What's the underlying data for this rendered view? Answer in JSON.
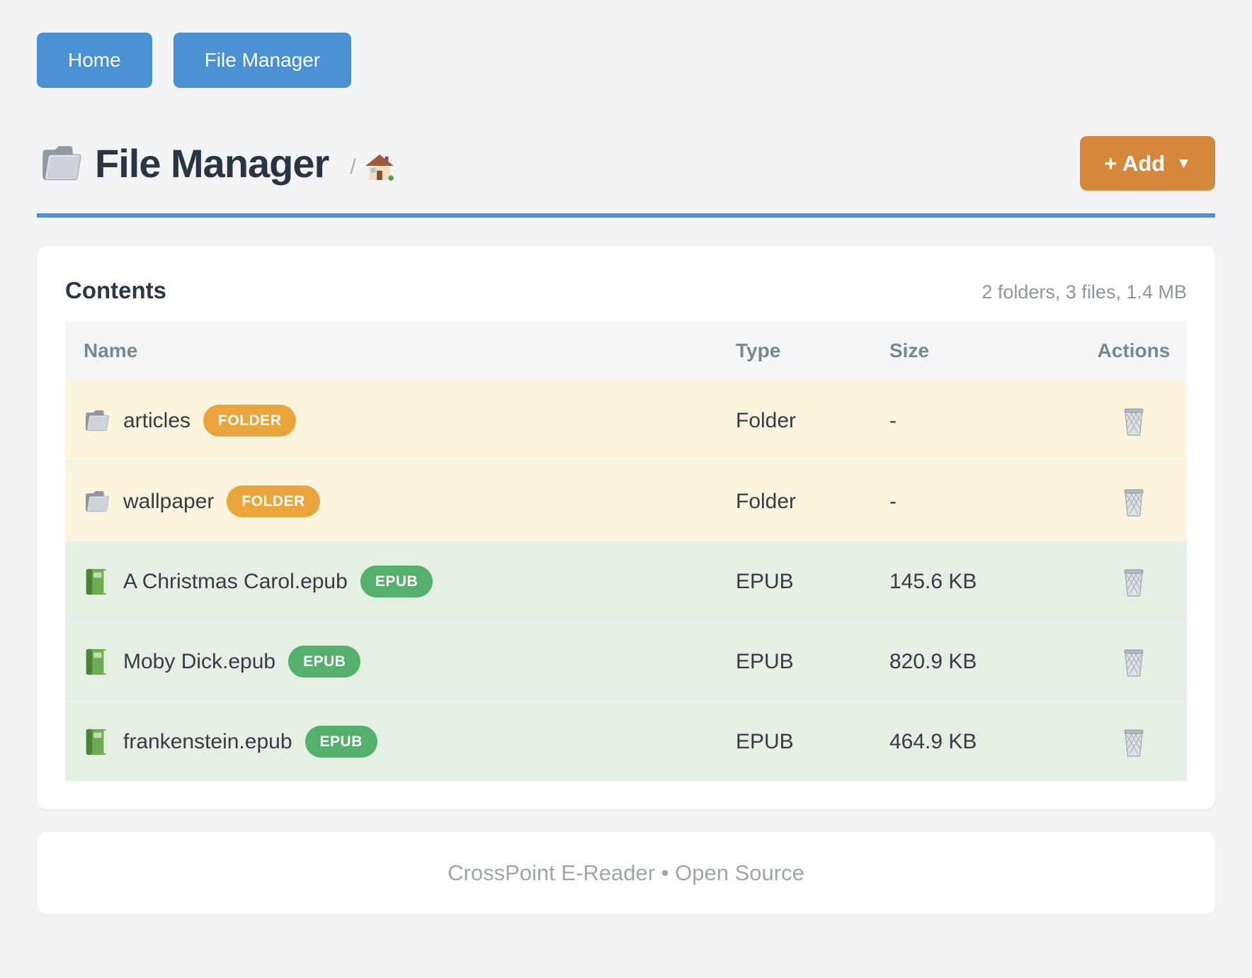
{
  "nav": {
    "items": [
      {
        "label": "Home"
      },
      {
        "label": "File Manager"
      }
    ]
  },
  "header": {
    "title": "File Manager",
    "title_icon": "folder-icon",
    "breadcrumb_separator": "/",
    "breadcrumb_home_icon": "house-icon",
    "add_label": "+ Add",
    "add_caret": "▼"
  },
  "content": {
    "heading": "Contents",
    "summary": "2 folders, 3 files, 1.4 MB",
    "columns": [
      "Name",
      "Type",
      "Size",
      "Actions"
    ],
    "rows": [
      {
        "name": "articles",
        "icon": "folder-icon",
        "badge": "FOLDER",
        "type": "Folder",
        "size": "-",
        "kind": "folder",
        "action_icon": "trash-icon"
      },
      {
        "name": "wallpaper",
        "icon": "folder-icon",
        "badge": "FOLDER",
        "type": "Folder",
        "size": "-",
        "kind": "folder",
        "action_icon": "trash-icon"
      },
      {
        "name": "A Christmas Carol.epub",
        "icon": "book-icon",
        "badge": "EPUB",
        "type": "EPUB",
        "size": "145.6 KB",
        "kind": "epub",
        "action_icon": "trash-icon"
      },
      {
        "name": "Moby Dick.epub",
        "icon": "book-icon",
        "badge": "EPUB",
        "type": "EPUB",
        "size": "820.9 KB",
        "kind": "epub",
        "action_icon": "trash-icon"
      },
      {
        "name": "frankenstein.epub",
        "icon": "book-icon",
        "badge": "EPUB",
        "type": "EPUB",
        "size": "464.9 KB",
        "kind": "epub",
        "action_icon": "trash-icon"
      }
    ]
  },
  "footer": {
    "text": "CrossPoint E-Reader • Open Source"
  },
  "colors": {
    "accent_blue": "#4a90d2",
    "accent_orange": "#d5873c",
    "badge_folder": "#e9a43c",
    "badge_epub": "#54b06a",
    "row_folder_bg": "#fcf4df",
    "row_epub_bg": "#e5f0e4"
  }
}
